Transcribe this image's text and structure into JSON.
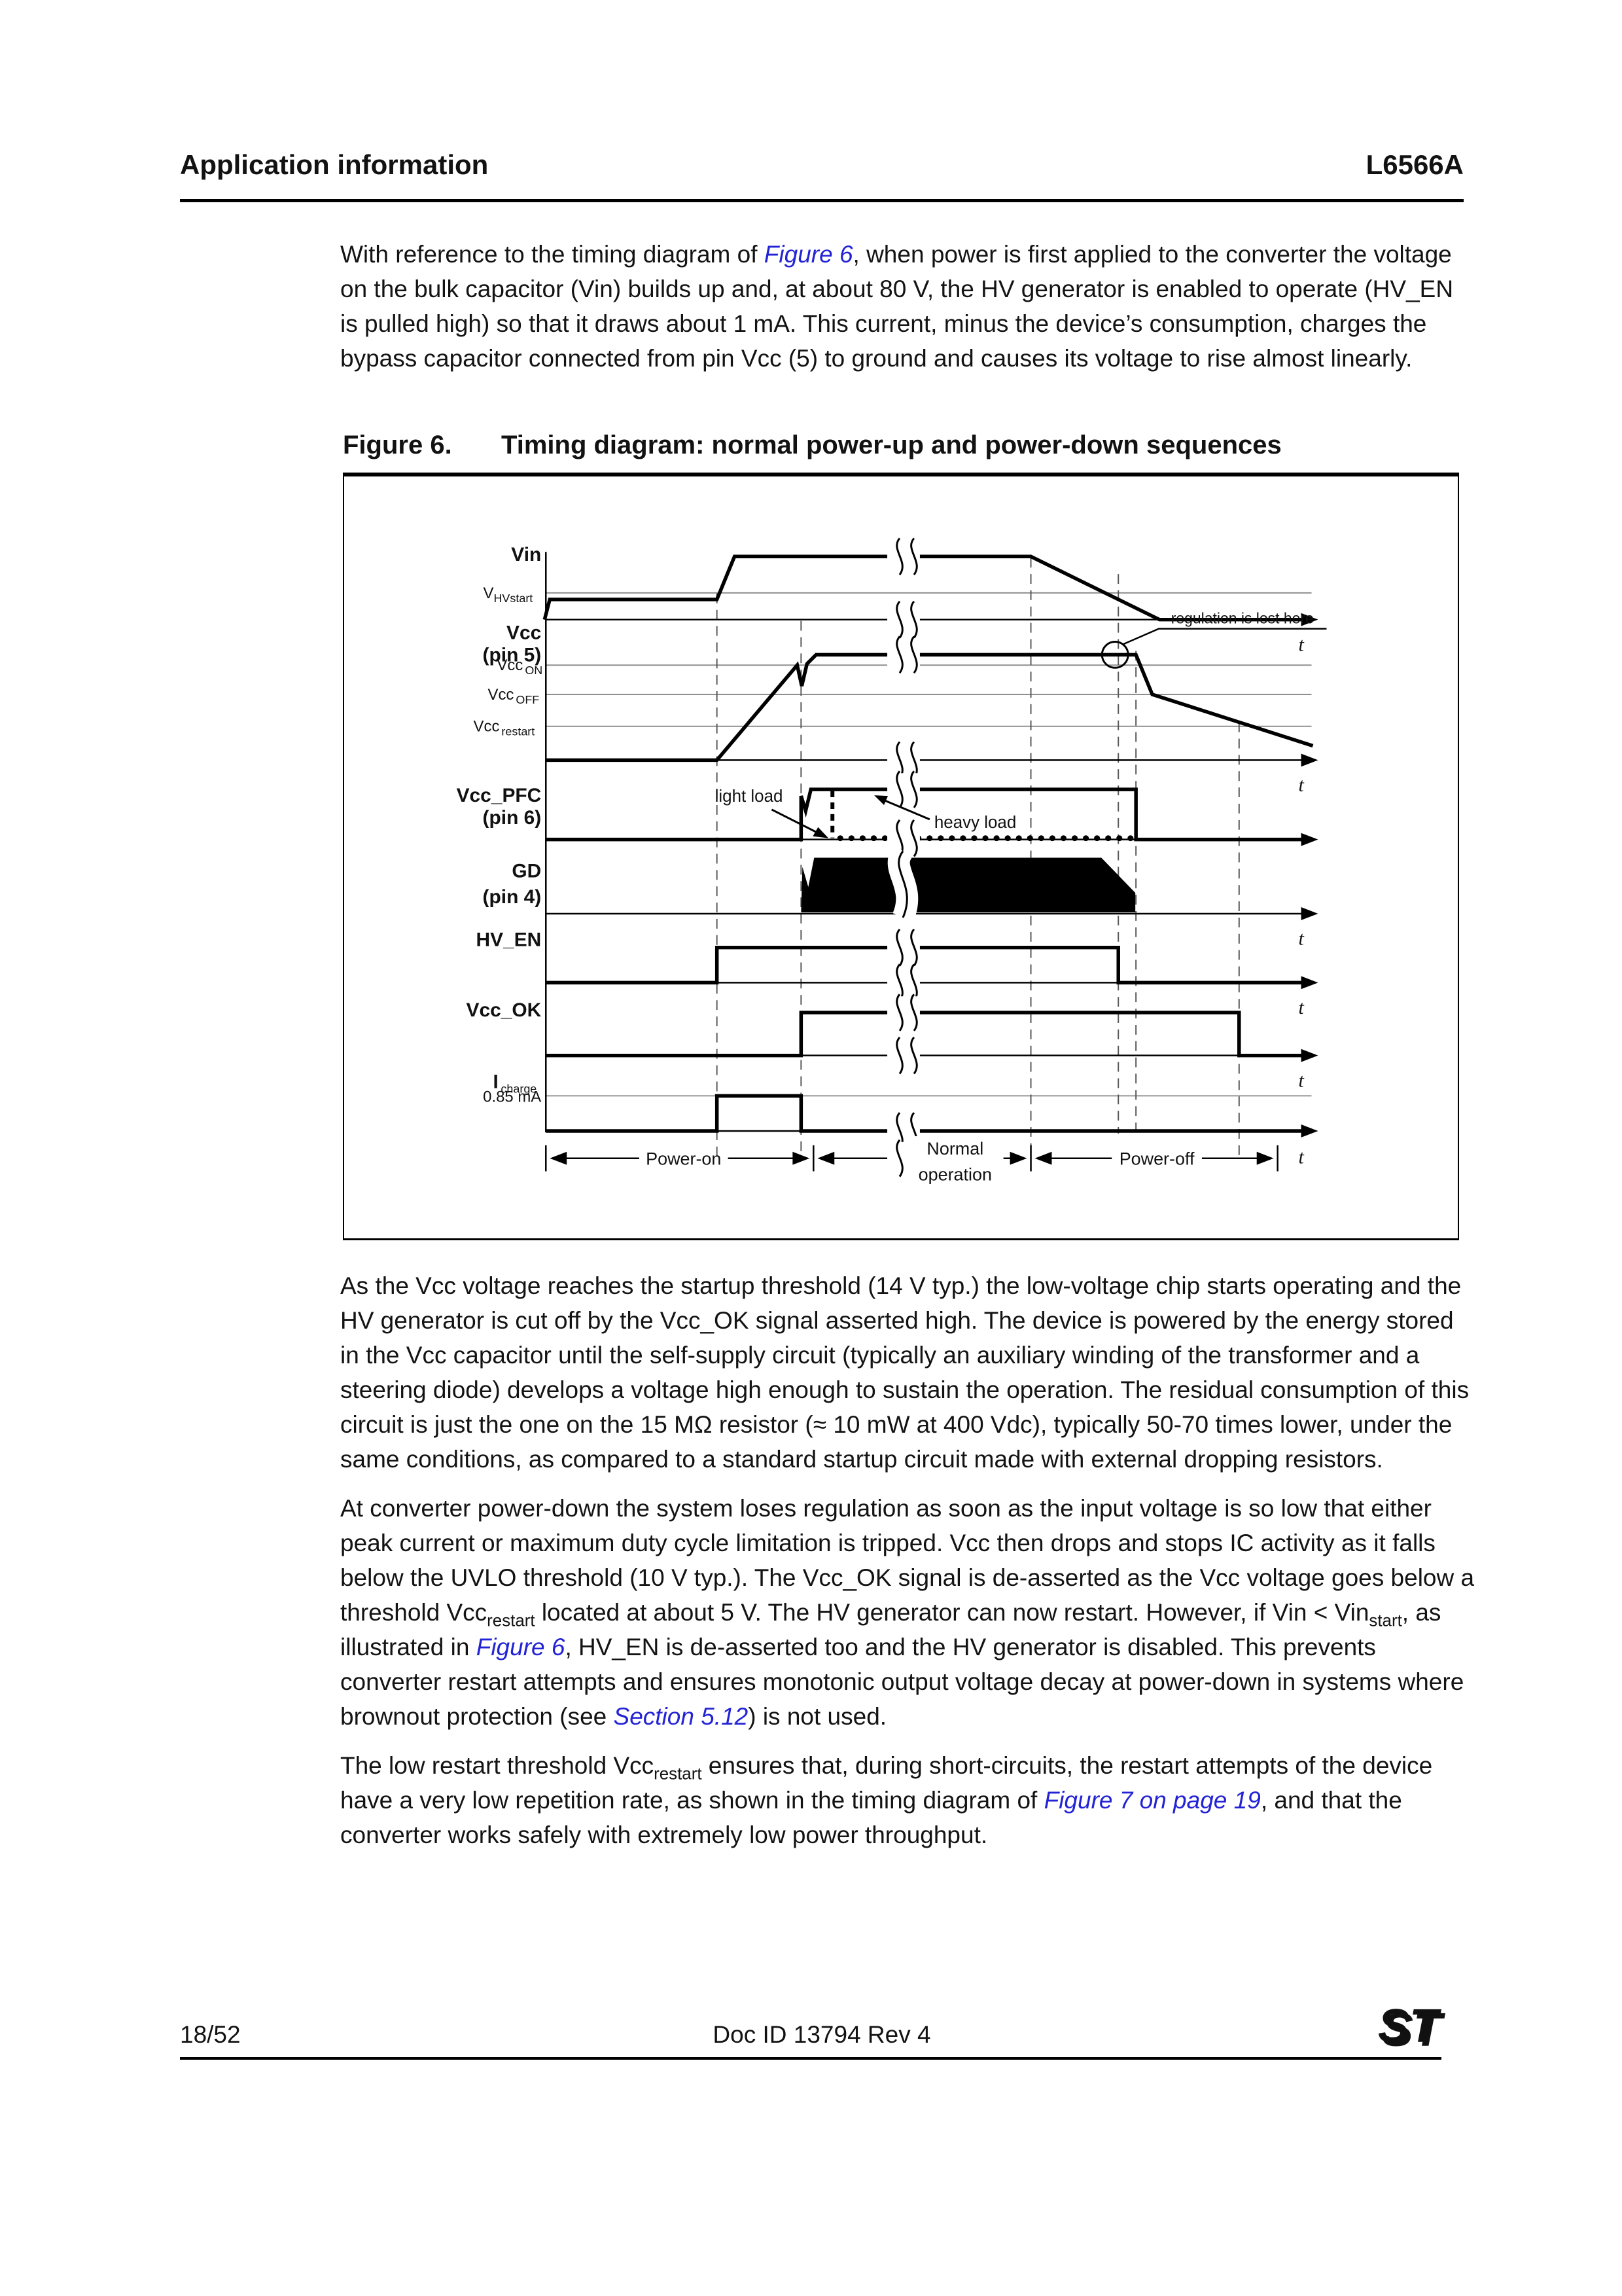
{
  "header": {
    "section": "Application information",
    "part": "L6566A"
  },
  "intro": {
    "runs": [
      {
        "t": "With reference to the timing diagram of "
      },
      {
        "t": "Figure 6",
        "s": "link"
      },
      {
        "t": ", when power is first applied to the converter the voltage on the bulk capacitor (Vin) builds up and, at about 80 V, the HV generator is enabled to operate (HV_EN is pulled high) so that it draws about 1 mA. This current, minus the device’s consumption, charges the bypass capacitor connected from pin Vcc (5) to ground and causes its voltage to rise almost linearly."
      }
    ]
  },
  "figure": {
    "label": "Figure 6.",
    "title": "Timing diagram: normal power-up and power-down sequences",
    "diagram": {
      "vin": "Vin",
      "vhv_main": "V",
      "vhv_sub": "HVstart",
      "vcc": "Vcc",
      "vcc_pin": "(pin 5)",
      "vccon_main": "Vcc",
      "vccon_sub": "ON",
      "vccoff_main": "Vcc",
      "vccoff_sub": "OFF",
      "vccrestart_main": "Vcc",
      "vccrestart_sub": "restart",
      "vccpfc": "Vcc_PFC",
      "vccpfc_pin": "(pin 6)",
      "gd": "GD",
      "gd_pin": "(pin 4)",
      "hven": "HV_EN",
      "vccok": "Vcc_OK",
      "icharge_main": "I",
      "icharge_sub": "charge",
      "i_level": "0.85 mA",
      "regulation_note": "regulation is lost here",
      "light_load": "light load",
      "heavy_load": "heavy load",
      "power_on": "Power-on",
      "normal_op_1": "Normal",
      "normal_op_2": "operation",
      "power_off": "Power-off",
      "t": "t"
    }
  },
  "body_paragraphs": [
    {
      "runs": [
        {
          "t": "As the Vcc voltage reaches the startup threshold (14 V typ.) the low-voltage chip starts operating and the HV generator is cut off by the Vcc_OK signal asserted high. The device is powered by the energy stored in the Vcc capacitor until the self-supply circuit (typically an auxiliary winding of the transformer and a steering diode) develops a voltage high enough to sustain the operation. The residual consumption of this circuit is just the one on the 15 MΩ resistor (≈ 10 mW at 400 Vdc), typically 50-70 times lower, under the same conditions, as compared to a standard startup circuit made with external dropping resistors."
        }
      ]
    },
    {
      "runs": [
        {
          "t": "At converter power-down the system loses regulation as soon as the input voltage is so low that either peak current or maximum duty cycle limitation is tripped. Vcc then drops and stops IC activity as it falls below the UVLO threshold (10 V typ.). The Vcc_OK signal is de-asserted as the Vcc voltage goes below a threshold Vcc"
        },
        {
          "t": "restart",
          "s": "sub"
        },
        {
          "t": " located at about 5 V. The HV generator can now restart. However, if Vin < Vin"
        },
        {
          "t": "start",
          "s": "sub"
        },
        {
          "t": ", as illustrated in "
        },
        {
          "t": "Figure 6",
          "s": "link"
        },
        {
          "t": ", HV_EN is de-asserted too and the HV generator is disabled. This prevents converter restart attempts and ensures monotonic output voltage decay at power-down in systems where brownout protection (see "
        },
        {
          "t": "Section 5.12",
          "s": "link"
        },
        {
          "t": ") is not used."
        }
      ]
    },
    {
      "runs": [
        {
          "t": "The low restart threshold Vcc"
        },
        {
          "t": "restart",
          "s": "sub"
        },
        {
          "t": " ensures that, during short-circuits, the restart attempts of the device have a very low repetition rate, as shown in the timing diagram of "
        },
        {
          "t": "Figure 7 on page 19",
          "s": "link"
        },
        {
          "t": ", and that the converter works safely with extremely low power throughput."
        }
      ]
    }
  ],
  "footer": {
    "page": "18/52",
    "doc": "Doc ID 13794 Rev 4",
    "logo": "ST"
  }
}
